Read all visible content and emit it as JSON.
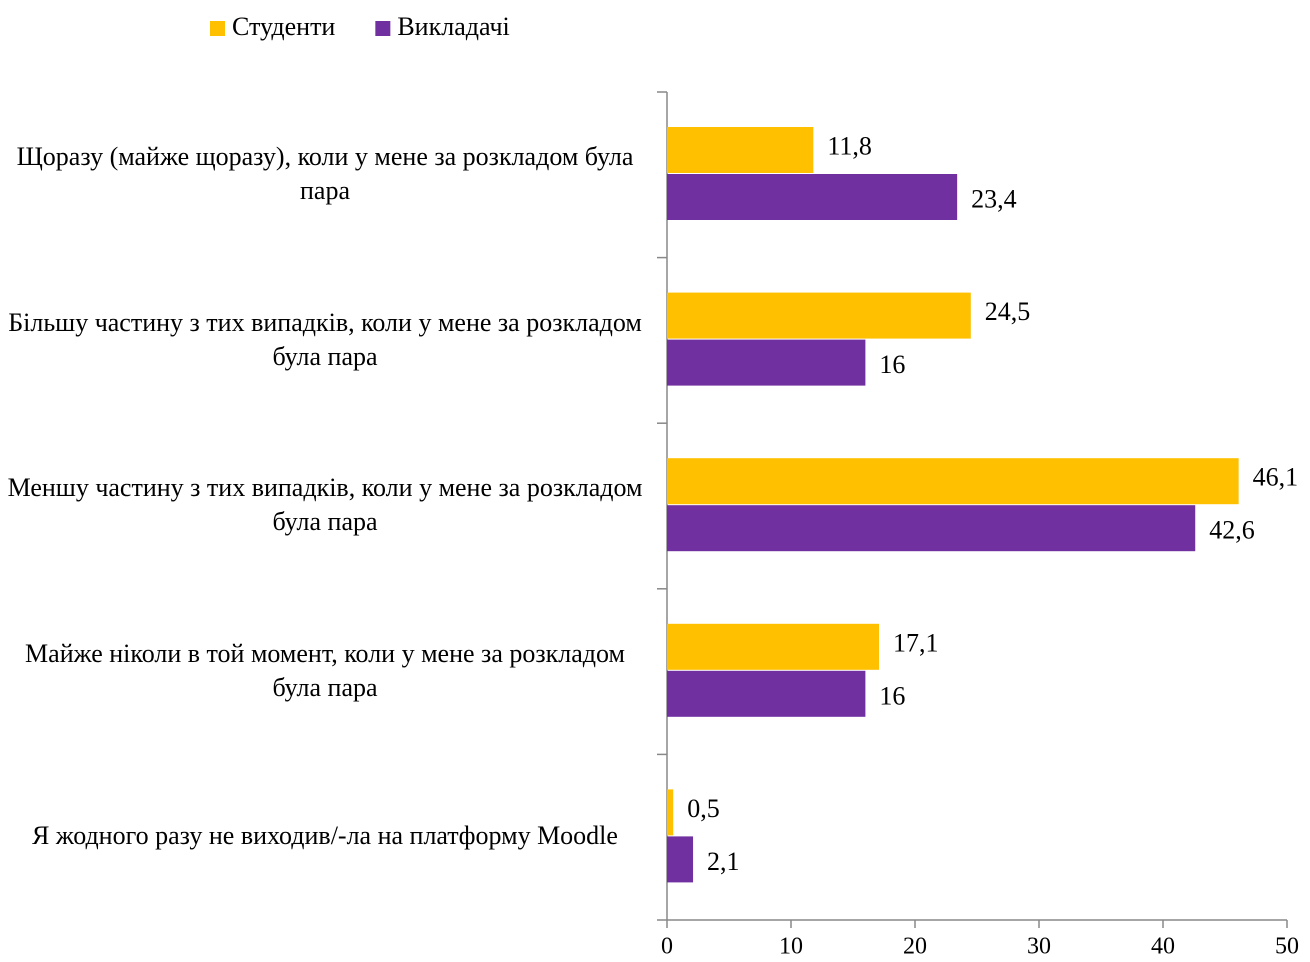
{
  "chart_data": {
    "type": "bar",
    "orientation": "horizontal",
    "categories": [
      "Щоразу (майже щоразу), коли у мене за розкладом була пара",
      "Більшу частину з тих випадків, коли у мене за розкладом була пара",
      "Меншу частину з тих випадків, коли у мене за розкладом була пара",
      "Майже ніколи в той момент, коли у мене за розкладом була пара",
      "Я жодного разу не виходив/-ла на платформу Moodle"
    ],
    "series": [
      {
        "name": "Студенти",
        "color": "#FFC000",
        "values": [
          11.8,
          24.5,
          46.1,
          17.1,
          0.5
        ],
        "value_labels": [
          "11,8",
          "24,5",
          "46,1",
          "17,1",
          "0,5"
        ]
      },
      {
        "name": "Викладачі",
        "color": "#7030A0",
        "values": [
          23.4,
          16,
          42.6,
          16,
          2.1
        ],
        "value_labels": [
          "23,4",
          "16",
          "42,6",
          "16",
          "2,1"
        ]
      }
    ],
    "xlim": [
      0,
      50
    ],
    "xticks": [
      0,
      10,
      20,
      30,
      40,
      50
    ],
    "legend": "top"
  }
}
